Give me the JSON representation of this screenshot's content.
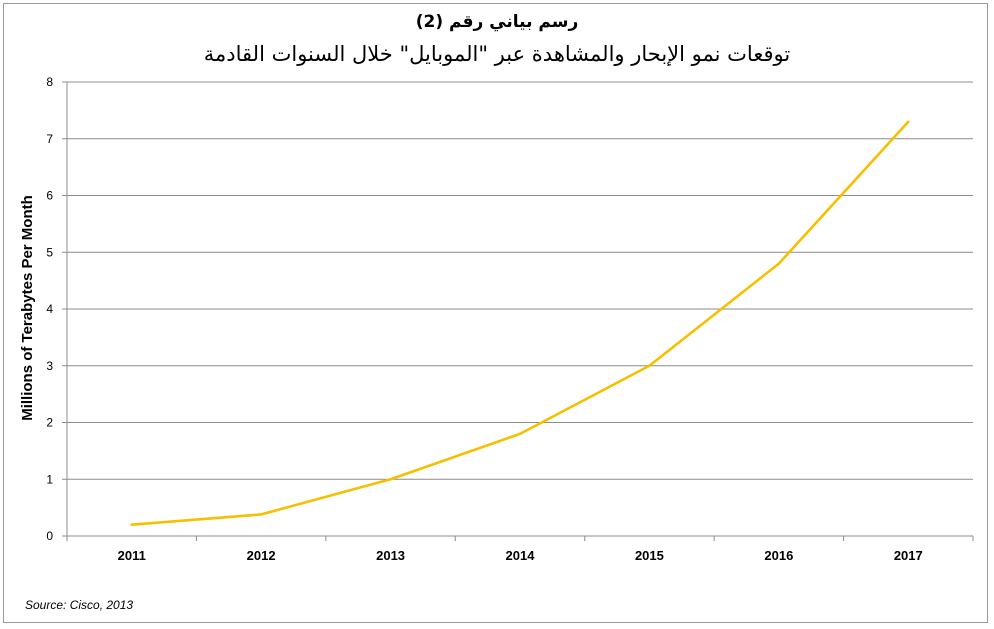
{
  "chart_data": {
    "type": "line",
    "title": "رسم بياني رقم (2)",
    "subtitle": "توقعات نمو الإبحار والمشاهدة عبر \"الموبايل\" خلال السنوات القادمة",
    "ylabel": "Millions of Terabytes Per Month",
    "xlabel": "",
    "categories": [
      "2011",
      "2012",
      "2013",
      "2014",
      "2015",
      "2016",
      "2017"
    ],
    "series": [
      {
        "values": [
          0.2,
          0.38,
          1.0,
          1.8,
          3.0,
          4.8,
          7.3
        ]
      }
    ],
    "ylim": [
      0,
      8
    ],
    "yticks": [
      0,
      1,
      2,
      3,
      4,
      5,
      6,
      7,
      8
    ],
    "grid": true,
    "legend": "none",
    "line_color": "#F5C000",
    "source": "Source: Cisco, 2013"
  }
}
